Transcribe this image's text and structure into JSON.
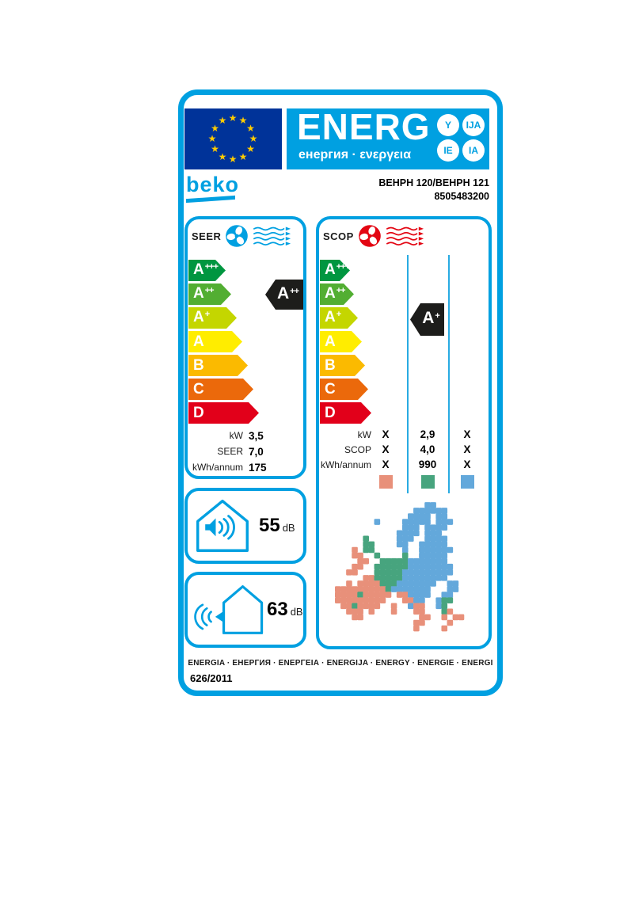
{
  "header": {
    "energ_title": "ENERG",
    "energ_subtitle": "енергия · ενεργεια",
    "suffix_circles": [
      "Y",
      "IJA",
      "IE",
      "IA"
    ],
    "brand": "beko",
    "model_line1": "BEHPH 120/BEHPH 121",
    "model_line2": "8505483200"
  },
  "cooling": {
    "title": "SEER",
    "rating": {
      "grade": "A",
      "sup": "++"
    },
    "specs": [
      {
        "label": "kW",
        "value": "3,5"
      },
      {
        "label": "SEER",
        "value": "7,0"
      },
      {
        "label": "kWh/annum",
        "value": "175"
      }
    ]
  },
  "heating": {
    "title": "SCOP",
    "rating": {
      "grade": "A",
      "sup": "+"
    },
    "spec_rows": [
      {
        "label": "kW",
        "cols": [
          "X",
          "2,9",
          "X"
        ]
      },
      {
        "label": "SCOP",
        "cols": [
          "X",
          "4,0",
          "X"
        ]
      },
      {
        "label": "kWh/annum",
        "cols": [
          "X",
          "990",
          "X"
        ]
      }
    ],
    "zones": [
      {
        "name": "warmer",
        "color": "#E8907A"
      },
      {
        "name": "average",
        "color": "#47A47E"
      },
      {
        "name": "colder",
        "color": "#63A8DB"
      }
    ]
  },
  "energy_classes": [
    {
      "grade": "A",
      "sup": "+++",
      "color": "#009640"
    },
    {
      "grade": "A",
      "sup": "++",
      "color": "#52AE32"
    },
    {
      "grade": "A",
      "sup": "+",
      "color": "#C4D600"
    },
    {
      "grade": "A",
      "sup": "",
      "color": "#FFED00"
    },
    {
      "grade": "B",
      "sup": "",
      "color": "#FBBA00"
    },
    {
      "grade": "C",
      "sup": "",
      "color": "#EB690B"
    },
    {
      "grade": "D",
      "sup": "",
      "color": "#E2001A"
    }
  ],
  "noise": {
    "indoor": {
      "value": "55",
      "unit": "dB"
    },
    "outdoor": {
      "value": "63",
      "unit": "dB"
    }
  },
  "footer": {
    "languages": "ENERGIA · ЕНЕРГИЯ · ΕΝΕΡΓΕΙΑ · ENERGIJA · ENERGY · ENERGIE · ENERGI",
    "regulation": "626/2011"
  },
  "colors": {
    "accent_blue": "#00A0E1",
    "heating_red": "#E30613",
    "eu_flag_blue": "#003399",
    "eu_star_yellow": "#FFCC00",
    "indicator_black": "#1D1D1B",
    "column_line_blue": "#29ABE2"
  },
  "map": {
    "legend": {
      "w": "#E8907A",
      "a": "#47A47E",
      "c": "#63A8DB"
    },
    "grid": [
      "................cc........",
      "..............cccccc......",
      ".............cccc.cc......",
      ".......c....ccccc.ccc.....",
      "............ccc.cccc......",
      "...........cccc.ccc.......",
      ".....a.....ccc..cccc......",
      ".....aa....cc..ccccc......",
      "...w.aa.....c..cccccc.....",
      "...ww..a....a..ccccc......",
      "....ww..aaaaaccccccc......",
      "...ww..aaaaaacccccccc.....",
      "..ww...aaaaaccccccccc.....",
      ".....wwaaaaacccccccc......",
      "..w.wwwwaaaccccccc..cc....",
      "wwwwwwwwwaccccccc...cc....",
      "wwwwawwwww.wwcccc..cc.....",
      "wwwwwwwww...wwcc..caa.....",
      ".wwawwww..w..cww..ca......",
      "..www.w...w...ww...aw.....",
      "...ww..........ww..w.ww...",
      "..............ww....w.....",
      "..............w....w......",
      ".........................."
    ]
  }
}
